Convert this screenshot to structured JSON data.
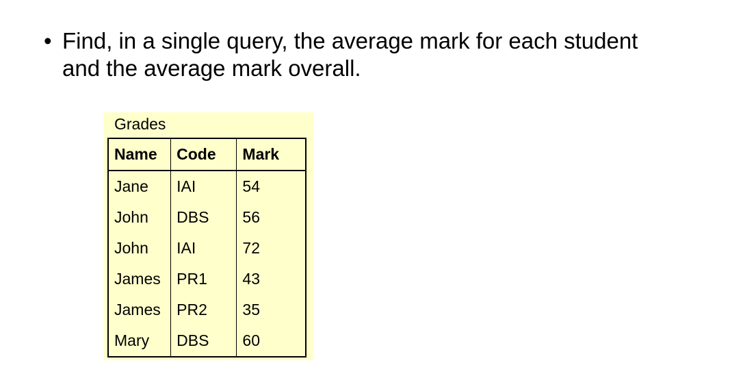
{
  "bullet": {
    "symbol": "•",
    "line1": "Find, in a single query, the average mark for each student",
    "line2": "and the average mark overall."
  },
  "table": {
    "caption": "Grades",
    "background": "#ffffcc",
    "headers": [
      "Name",
      "Code",
      "Mark"
    ],
    "rows": [
      [
        "Jane",
        "IAI",
        "54"
      ],
      [
        "John",
        "DBS",
        "56"
      ],
      [
        "John",
        "IAI",
        "72"
      ],
      [
        "James",
        "PR1",
        "43"
      ],
      [
        "James",
        "PR2",
        "35"
      ],
      [
        "Mary",
        "DBS",
        "60"
      ]
    ]
  }
}
